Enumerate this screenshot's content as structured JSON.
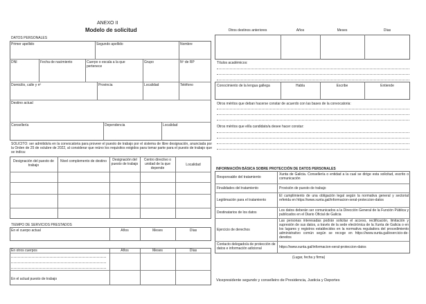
{
  "header": {
    "annex": "ANEXO II",
    "title": "Modelo de solicitud"
  },
  "personal": {
    "heading": "DATOS PERSONALES",
    "primer_apellido": "Primer apellido",
    "segundo_apellido": "Segundo apellido",
    "nombre": "Nombre",
    "dni": "DNI",
    "fecha": "Fecha de nacimiento",
    "cuerpo": "Cuerpo o escala a la que pertenece",
    "grupo": "Grupo",
    "nrp": "Nº de RP",
    "domicilio": "Domicilio, calle y nº",
    "provincia": "Provincia",
    "localidad": "Localidad",
    "telefono": "Teléfono",
    "destino": "Destino actual",
    "conselleria": "Consellería",
    "dependencia": "Dependencia",
    "localidad2": "Localidad"
  },
  "solicito": "SOLICITO: ser admitido/a en la convocatoria para proveer el puesto de trabajo por el sistema de libre designación, anunciada por la Orden de 25 de octubre de 2022, al considerar que reúno los requisitos exigidos para tomar parte para el puesto de trabajo que se indica:",
  "puesto_table": {
    "headers": [
      "Designación del puesto de trabajo",
      "Nivel complemento de destino",
      "Designación del puesto de trabajo",
      "Centro directivo o unidad de la que depende",
      "Localidad"
    ]
  },
  "tiempo": {
    "heading": "TIEMPO DE SERVICIOS PRESTADOS",
    "cuerpo_actual": "En el cuerpo actual",
    "otros_cuerpos": "En otros cuerpos",
    "actual_puesto": "En el actual puesto de trabajo",
    "anos": "Años",
    "meses": "Meses",
    "dias": "Días"
  },
  "right": {
    "otros_destinos": "Otros destinos anteriores",
    "anos": "Años",
    "meses": "Meses",
    "dias": "Días",
    "titulos": "Títulos académicos:",
    "lengua": "Conocimiento de la lengua gallega",
    "habla": "Habla",
    "escribe": "Escribe",
    "entiende": "Entiende",
    "meritos_bases": "Otros méritos que deban hacerse constar de acuerdo con las bases de la convocatoria:",
    "meritos_candidato": "Otros méritos que el/la candidato/a desee hacer constar:"
  },
  "proteccion": {
    "heading": "INFORMACIÓN BÁSICA SOBRE PROTECCIÓN DE DATOS PERSONALES",
    "rows": [
      {
        "label": "Responsable del tratamiento",
        "value": "Xunta de Galicia. Consellería o entidad a la cual se dirige esta solicitud, escrito o comunicación"
      },
      {
        "label": "Finalidades del tratamiento",
        "value": "Provisión de puesto de trabajo"
      },
      {
        "label": "Legitimación para el tratamiento",
        "value": "El cumplimiento de una obligación legal según la normativa general y sectorial referida en https://www.xunta.gal/informacion-xeral-proteccion-datos"
      },
      {
        "label": "Destinatarios de los datos",
        "value": "Los datos deberán ser comunicados a la Dirección General de la Función Pública y publicados en el Diario Oficial de Galicia"
      },
      {
        "label": "Ejercicio de derechos",
        "value": "Las personas interesadas podrán solicitar el acceso, rectificación, limitación y supresión de sus datos, a través de la sede electrónica de la Xunta de Galicia o en los lugares y registros establecidos en la normativa reguladora del procedimiento administrativo común según se recoge en https://www.xunta.gal/exercicio-de-dereitos"
      },
      {
        "label": "Contacto delegado/a de protección de datos e información adicional",
        "value": "https://www.xunta.gal/informacion-xeral-proteccion-datos"
      }
    ]
  },
  "firma": "(Lugar, fecha y firma)",
  "destinatario": "Vicepresidente segundo y conselleiro de Presidencia, Justicia y Deportes"
}
